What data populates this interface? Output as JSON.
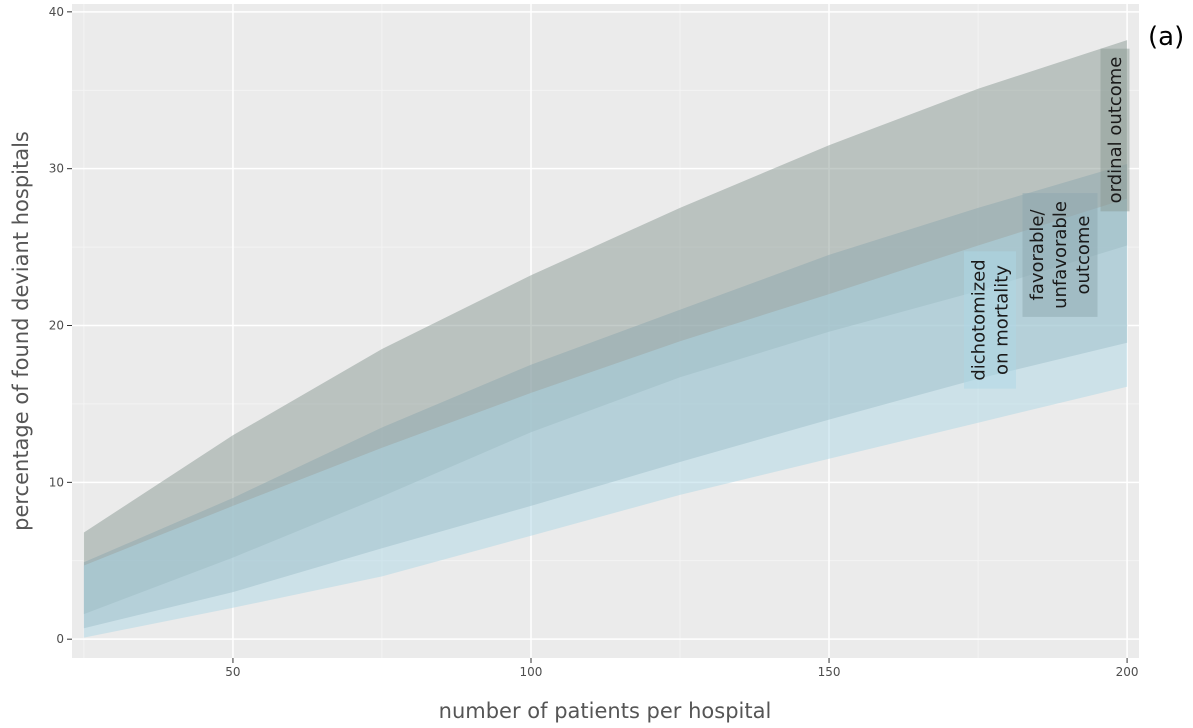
{
  "panel_label": "(a)",
  "chart_data": {
    "type": "area",
    "xlabel": "number of patients per hospital",
    "ylabel": "percentage of found deviant hospitals",
    "xlim": [
      23,
      202
    ],
    "ylim": [
      -1.2,
      40.5
    ],
    "x_ticks": [
      50,
      100,
      150,
      200
    ],
    "y_ticks": [
      0,
      10,
      20,
      30,
      40
    ],
    "grid": true,
    "legend": "none",
    "series": [
      {
        "label_lines": [
          "ordinal outcome"
        ],
        "color": "#8a9a94",
        "x": [
          25,
          50,
          75,
          100,
          125,
          150,
          175,
          200
        ],
        "upper": [
          6.8,
          13.0,
          18.5,
          23.2,
          27.5,
          31.5,
          35.1,
          38.2
        ],
        "lower": [
          1.6,
          5.2,
          9.1,
          13.2,
          16.7,
          19.6,
          22.2,
          25.1
        ]
      },
      {
        "label_lines": [
          "favorable/",
          "unfavorable",
          "outcome"
        ],
        "color": "#8da8b0",
        "x": [
          25,
          50,
          75,
          100,
          125,
          150,
          175,
          200
        ],
        "upper": [
          4.9,
          9.0,
          13.5,
          17.5,
          21.0,
          24.5,
          27.5,
          30.3
        ],
        "lower": [
          0.7,
          3.0,
          5.8,
          8.5,
          11.3,
          14.0,
          16.6,
          18.9
        ]
      },
      {
        "label_lines": [
          "dichotomized",
          "on mortality"
        ],
        "color": "#add8e6",
        "x": [
          25,
          50,
          75,
          100,
          125,
          150,
          175,
          200
        ],
        "upper": [
          4.7,
          8.5,
          12.2,
          15.7,
          19.0,
          22.0,
          25.1,
          28.1
        ],
        "lower": [
          0.1,
          2.0,
          4.0,
          6.6,
          9.2,
          11.5,
          13.8,
          16.1
        ]
      }
    ]
  }
}
